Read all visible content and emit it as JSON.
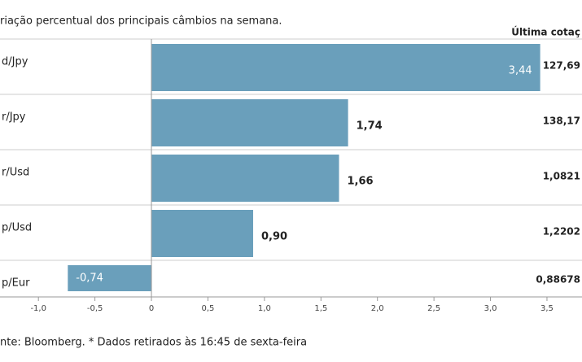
{
  "chart_data": {
    "type": "hbar",
    "title": "riação percentual dos principais câmbios na semana.",
    "categories": [
      "d/Jpy",
      "r/Jpy",
      "r/Usd",
      "p/Usd",
      "p/Eur"
    ],
    "values": [
      3.44,
      1.74,
      1.66,
      0.9,
      -0.74
    ],
    "value_labels": [
      "3,44",
      "1,74",
      "1,66",
      "0,90",
      "-0,74"
    ],
    "color": "#6a9fbb",
    "quote_header": "Última cotaç",
    "quotes": [
      "127,69",
      "138,17",
      "1,0821",
      "1,2202",
      "0,88678"
    ],
    "xlim": [
      -1.34,
      3.81
    ],
    "xticks": [
      {
        "value": -1.0,
        "label": "-1,0"
      },
      {
        "value": -0.5,
        "label": "-0,5"
      },
      0,
      {
        "value": 0.5,
        "label": "0,5"
      },
      {
        "value": 1.0,
        "label": "1,0"
      },
      {
        "value": 1.5,
        "label": "1,5"
      },
      {
        "value": 2.0,
        "label": "2,0"
      },
      {
        "value": 2.5,
        "label": "2,5"
      },
      {
        "value": 3.0,
        "label": "3,0"
      },
      {
        "value": 3.5,
        "label": "3,5"
      }
    ],
    "source": "nte: Bloomberg.  * Dados retirados às 16:45 de sexta-feira"
  }
}
